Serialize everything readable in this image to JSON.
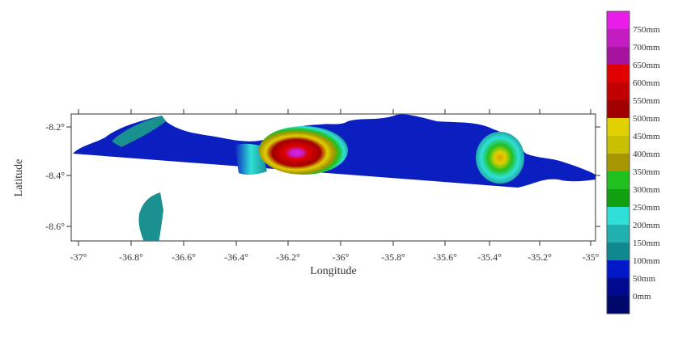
{
  "map": {
    "xlabel": "Longitude",
    "ylabel": "Latitude",
    "x_ticks": [
      "-37°",
      "-36.8°",
      "-36.6°",
      "-36.4°",
      "-36.2°",
      "-36°",
      "-35.8°",
      "-35.6°",
      "-35.4°",
      "-35.2°",
      "-35°"
    ],
    "y_ticks": [
      "-8.2°",
      "-8.4°",
      "-8.6°"
    ],
    "x_range": [
      -37,
      -35
    ],
    "y_range": [
      -8.7,
      -8.1
    ]
  },
  "legend": {
    "labels": [
      "750mm",
      "700mm",
      "650mm",
      "600mm",
      "550mm",
      "500mm",
      "450mm",
      "400mm",
      "350mm",
      "300mm",
      "250mm",
      "200mm",
      "150mm",
      "100mm",
      "50mm",
      "0mm"
    ],
    "colors": [
      "#e81ee8",
      "#c21cc2",
      "#a6139f",
      "#e00000",
      "#c00000",
      "#a00000",
      "#e0d000",
      "#c8c000",
      "#a89600",
      "#20c020",
      "#10a010",
      "#30e0d8",
      "#20b0b0",
      "#108890",
      "#0018c8",
      "#000a90",
      "#00076a"
    ]
  },
  "contours": [
    {
      "value_mm": 100,
      "color": "#1a9090",
      "lon": -36.84,
      "lat": -8.24
    },
    {
      "value_mm": 100,
      "color": "#1a9090",
      "lon": -36.74,
      "lat": -8.6
    },
    {
      "value_mm": 600,
      "color": "#d80000",
      "lon": -36.14,
      "lat": -8.35
    },
    {
      "value_mm": 750,
      "color": "#d01ed0",
      "lon": -36.15,
      "lat": -8.37
    },
    {
      "value_mm": 450,
      "color": "#d8c800",
      "lon": -35.34,
      "lat": -8.36
    }
  ]
}
